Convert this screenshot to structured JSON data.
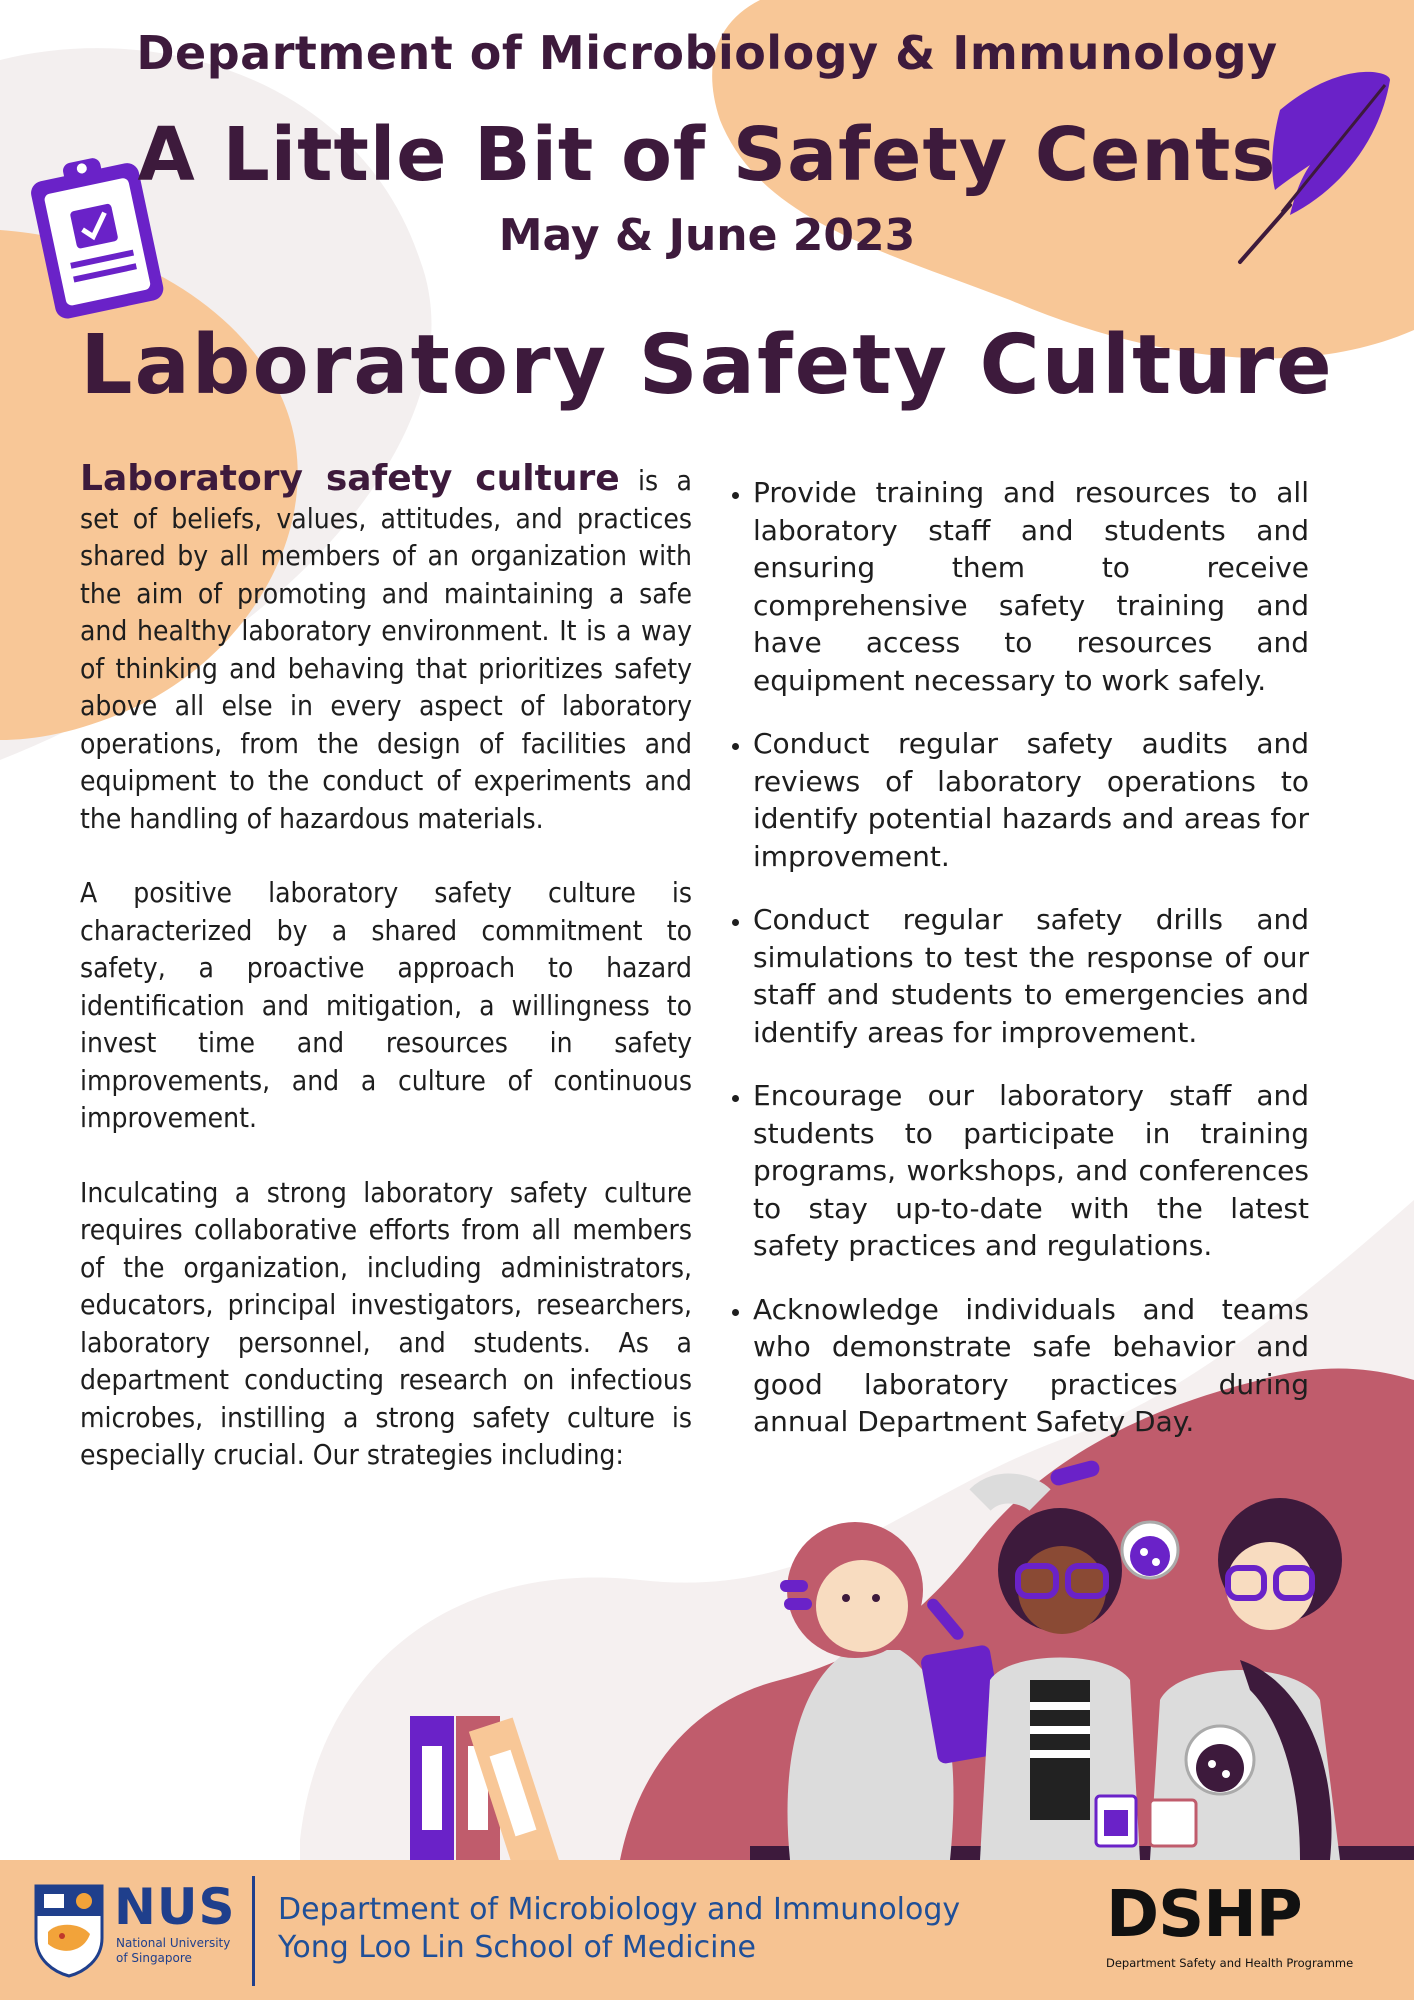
{
  "header": {
    "department": "Department of Microbiology & Immunology",
    "newsletter_title": "A Little Bit of Safety Cents",
    "issue_period": "May & June 2023"
  },
  "topic_title": "Laboratory Safety Culture",
  "left_column": {
    "lead_term": "Laboratory safety culture",
    "paragraph_1_rest": " is a set of beliefs, values, attitudes, and practices shared by all members of an organization with the aim of promoting and maintaining a safe and healthy laboratory environment. It is a way of thinking and behaving that prioritizes safety above all else in every aspect of laboratory operations, from the design of facilities and equipment to the conduct of experiments and the handling of hazardous materials.",
    "paragraph_2": "A positive laboratory safety culture is characterized by a shared commitment to safety, a proactive approach to hazard identification and mitigation, a willingness to invest time and resources in safety improvements, and a culture of continuous improvement.",
    "paragraph_3": "Inculcating a strong laboratory safety culture requires collaborative efforts from all members of the organization, including administrators, educators, principal investigators, researchers, laboratory personnel, and students.  As a department conducting research on infectious microbes, instilling a strong safety culture is especially crucial. Our strategies including:"
  },
  "strategies": [
    "Provide training and resources to all laboratory staff and students and ensuring them to receive comprehensive safety training and have access to resources and equipment necessary to work safely.",
    "Conduct regular safety audits and reviews of laboratory operations to identify potential hazards and areas for improvement.",
    "Conduct regular safety drills and simulations  to test the response of our staff and students to emergencies and identify areas for improvement.",
    "Encourage our laboratory staff and students to participate in training programs, workshops, and conferences to stay up-to-date with the latest safety practices and regulations.",
    "Acknowledge individuals and teams who demonstrate safe behavior and good laboratory practices during annual Department Safety Day."
  ],
  "footer": {
    "nus_abbr": "NUS",
    "nus_line1": "National University",
    "nus_line2": "of Singapore",
    "faculty_line1": "Department of Microbiology and Immunology",
    "faculty_line2": "Yong Loo Lin School of Medicine",
    "dshp_abbr": "DSHP",
    "dshp_full": "Department Safety and Health Programme"
  },
  "colors": {
    "peach": "#f6c392",
    "plum": "#3d1a3c",
    "rose": "#c06070",
    "purple": "#6a22c8",
    "nus_blue": "#1f3f8c"
  }
}
